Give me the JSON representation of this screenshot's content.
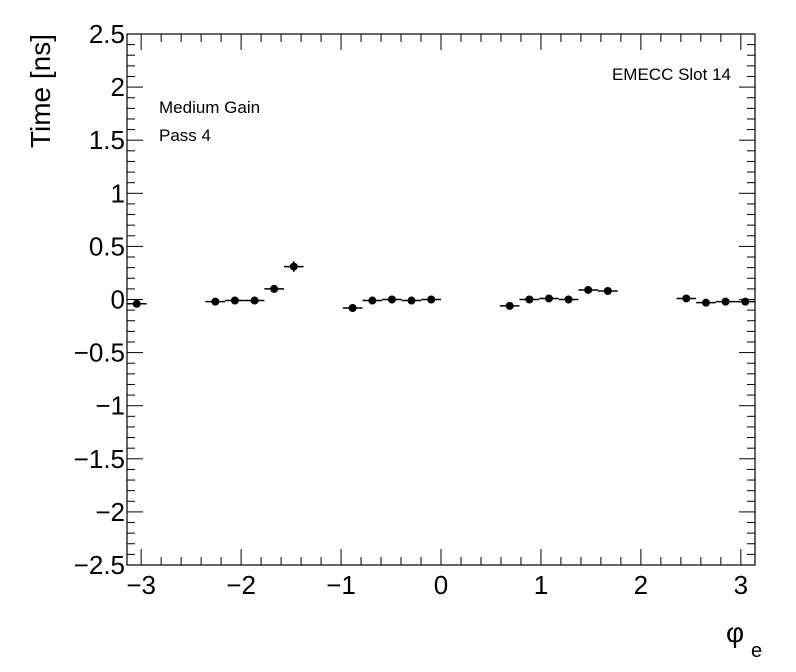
{
  "chart_data": {
    "type": "scatter",
    "ylabel": "Time [ns]",
    "xlabel_main": "φ",
    "xlabel_sub": "e",
    "annotations": [
      "Medium Gain",
      "Pass 4",
      "EMECC Slot 14"
    ],
    "xlim": [
      -3.1416,
      3.1416
    ],
    "ylim": [
      -2.5,
      2.5
    ],
    "x_ticks": [
      -3,
      -2,
      -1,
      0,
      1,
      2,
      3
    ],
    "x_tick_labels": [
      "−3",
      "−2",
      "−1",
      "0",
      "1",
      "2",
      "3"
    ],
    "y_ticks": [
      -2.5,
      -2,
      -1.5,
      -1,
      -0.5,
      0,
      0.5,
      1,
      1.5,
      2,
      2.5
    ],
    "y_tick_labels": [
      "−2.5",
      "−2",
      "−1.5",
      "−1",
      "−0.5",
      "0",
      "0.5",
      "1",
      "1.5",
      "2",
      "2.5"
    ],
    "x_bin_width": 0.19635,
    "color": "#000000",
    "points": [
      {
        "x": -3.044,
        "y": -0.04,
        "yerr": 0.02
      },
      {
        "x": -2.258,
        "y": -0.02,
        "yerr": 0.015
      },
      {
        "x": -2.062,
        "y": -0.01,
        "yerr": 0.015
      },
      {
        "x": -1.865,
        "y": -0.01,
        "yerr": 0.015
      },
      {
        "x": -1.669,
        "y": 0.1,
        "yerr": 0.02
      },
      {
        "x": -1.473,
        "y": 0.31,
        "yerr": 0.05
      },
      {
        "x": -0.884,
        "y": -0.08,
        "yerr": 0.02
      },
      {
        "x": -0.687,
        "y": -0.01,
        "yerr": 0.015
      },
      {
        "x": -0.491,
        "y": 0.0,
        "yerr": 0.015
      },
      {
        "x": -0.295,
        "y": -0.01,
        "yerr": 0.015
      },
      {
        "x": -0.098,
        "y": 0.0,
        "yerr": 0.015
      },
      {
        "x": 0.687,
        "y": -0.06,
        "yerr": 0.02
      },
      {
        "x": 0.884,
        "y": 0.0,
        "yerr": 0.015
      },
      {
        "x": 1.08,
        "y": 0.01,
        "yerr": 0.015
      },
      {
        "x": 1.276,
        "y": 0.0,
        "yerr": 0.015
      },
      {
        "x": 1.473,
        "y": 0.09,
        "yerr": 0.02
      },
      {
        "x": 1.669,
        "y": 0.08,
        "yerr": 0.03
      },
      {
        "x": 2.454,
        "y": 0.01,
        "yerr": 0.015
      },
      {
        "x": 2.651,
        "y": -0.03,
        "yerr": 0.015
      },
      {
        "x": 2.847,
        "y": -0.02,
        "yerr": 0.015
      },
      {
        "x": 3.044,
        "y": -0.02,
        "yerr": 0.02
      }
    ]
  }
}
